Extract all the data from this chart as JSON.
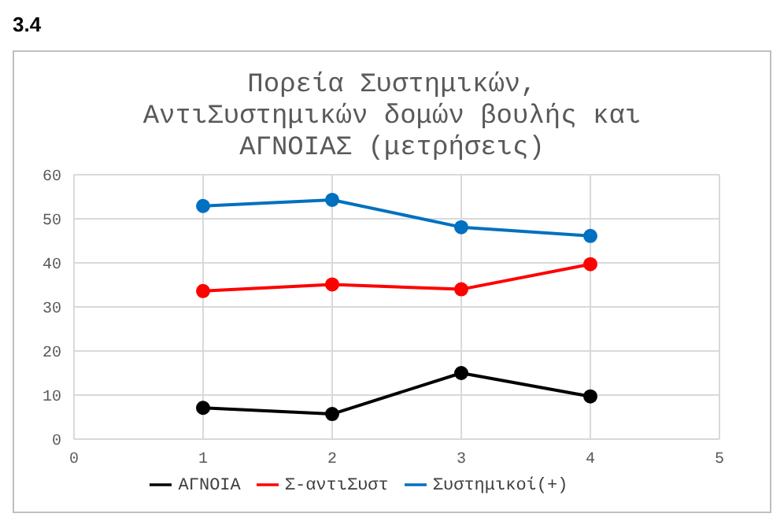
{
  "chart_data": {
    "type": "line",
    "title": "Πορεία Συστημικών, ΑντιΣυστημικών δομών βουλής και ΑΓΝΟΙΑΣ (μετρήσεις)",
    "annotations": [
      "3.4"
    ],
    "x": [
      1,
      2,
      3,
      4
    ],
    "series": [
      {
        "name": "ΑΓΝΟΙΑ",
        "color": "#000000",
        "values": [
          7.1,
          5.7,
          15,
          9.7
        ]
      },
      {
        "name": "Σ-αντιΣυστ",
        "color": "#ff0000",
        "values": [
          33.6,
          35.1,
          34,
          39.7
        ]
      },
      {
        "name": "Συστημικοί(+)",
        "color": "#0070c0",
        "values": [
          52.9,
          54.3,
          48.1,
          46.1
        ]
      }
    ],
    "xlim": [
      0,
      5
    ],
    "xticks": [
      0,
      1,
      2,
      3,
      4,
      5
    ],
    "ylim": [
      0,
      60
    ],
    "yticks": [
      0,
      10,
      20,
      30,
      40,
      50,
      60
    ],
    "grid": true,
    "legend": "bottom",
    "marker": "circle",
    "line_style": "solid"
  }
}
